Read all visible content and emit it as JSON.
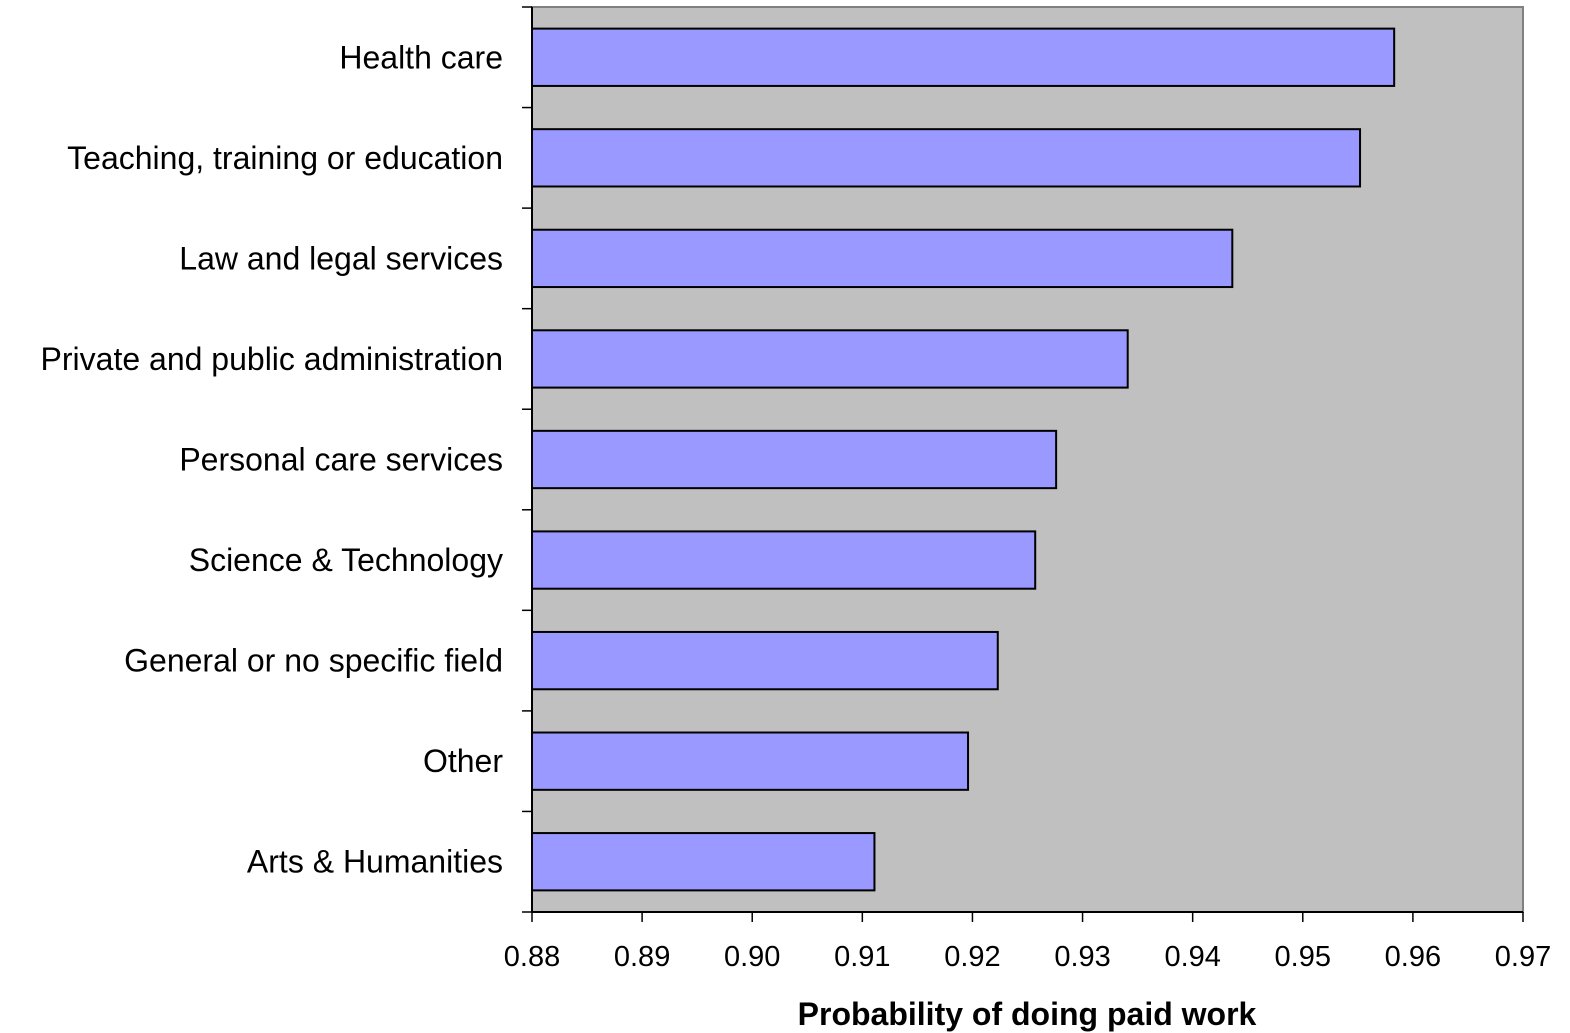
{
  "chart_data": {
    "type": "bar",
    "orientation": "horizontal",
    "categories": [
      "Health care",
      "Teaching, training or education",
      "Law and legal services",
      "Private and public administration",
      "Personal care services",
      "Science & Technology",
      "General or no specific field",
      "Other",
      "Arts & Humanities"
    ],
    "values": [
      0.9583,
      0.9552,
      0.9436,
      0.9341,
      0.9276,
      0.9257,
      0.9223,
      0.9196,
      0.9111
    ],
    "xlabel": "Probability of doing paid work",
    "ylabel": "",
    "xlim": [
      0.88,
      0.97
    ],
    "xticks": [
      "0.88",
      "0.89",
      "0.90",
      "0.91",
      "0.92",
      "0.93",
      "0.94",
      "0.95",
      "0.96",
      "0.97"
    ],
    "grid": false,
    "legend": "none",
    "colors": {
      "bar_fill": "#9999ff",
      "bar_stroke": "#000000",
      "plot_background": "#c0c0c0",
      "axis": "#808080"
    }
  }
}
